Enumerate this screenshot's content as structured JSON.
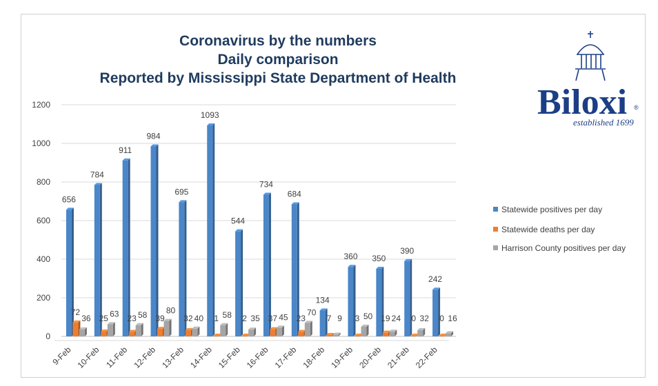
{
  "chart_data": {
    "type": "bar",
    "title": [
      "Coronavirus by the numbers",
      "Daily comparison",
      "Reported by Mississippi State Department of Health"
    ],
    "categories": [
      "9-Feb",
      "10-Feb",
      "11-Feb",
      "12-Feb",
      "13-Feb",
      "14-Feb",
      "15-Feb",
      "16-Feb",
      "17-Feb",
      "18-Feb",
      "19-Feb",
      "20-Feb",
      "21-Feb",
      "22-Feb"
    ],
    "series": [
      {
        "name": "Statewide positives per day",
        "color": "#4a86c8",
        "values": [
          656,
          784,
          911,
          984,
          695,
          1093,
          544,
          734,
          684,
          134,
          360,
          350,
          390,
          242
        ]
      },
      {
        "name": "Statewide deaths per day",
        "color": "#ed7d31",
        "values": [
          72,
          25,
          23,
          39,
          32,
          1,
          2,
          37,
          23,
          7,
          3,
          19,
          0,
          0
        ]
      },
      {
        "name": "Harrison County positives per day",
        "color": "#a5a5a5",
        "values": [
          36,
          63,
          58,
          80,
          40,
          58,
          35,
          45,
          70,
          9,
          50,
          24,
          32,
          16
        ]
      }
    ],
    "yticks": [
      0,
      200,
      400,
      600,
      800,
      1000,
      1200
    ],
    "ylim": [
      0,
      1200
    ],
    "xlabel": "",
    "ylabel": "",
    "legend": "right",
    "grid": true
  },
  "logo": {
    "name": "Biloxi",
    "registered": "®",
    "tagline": "established 1699"
  }
}
